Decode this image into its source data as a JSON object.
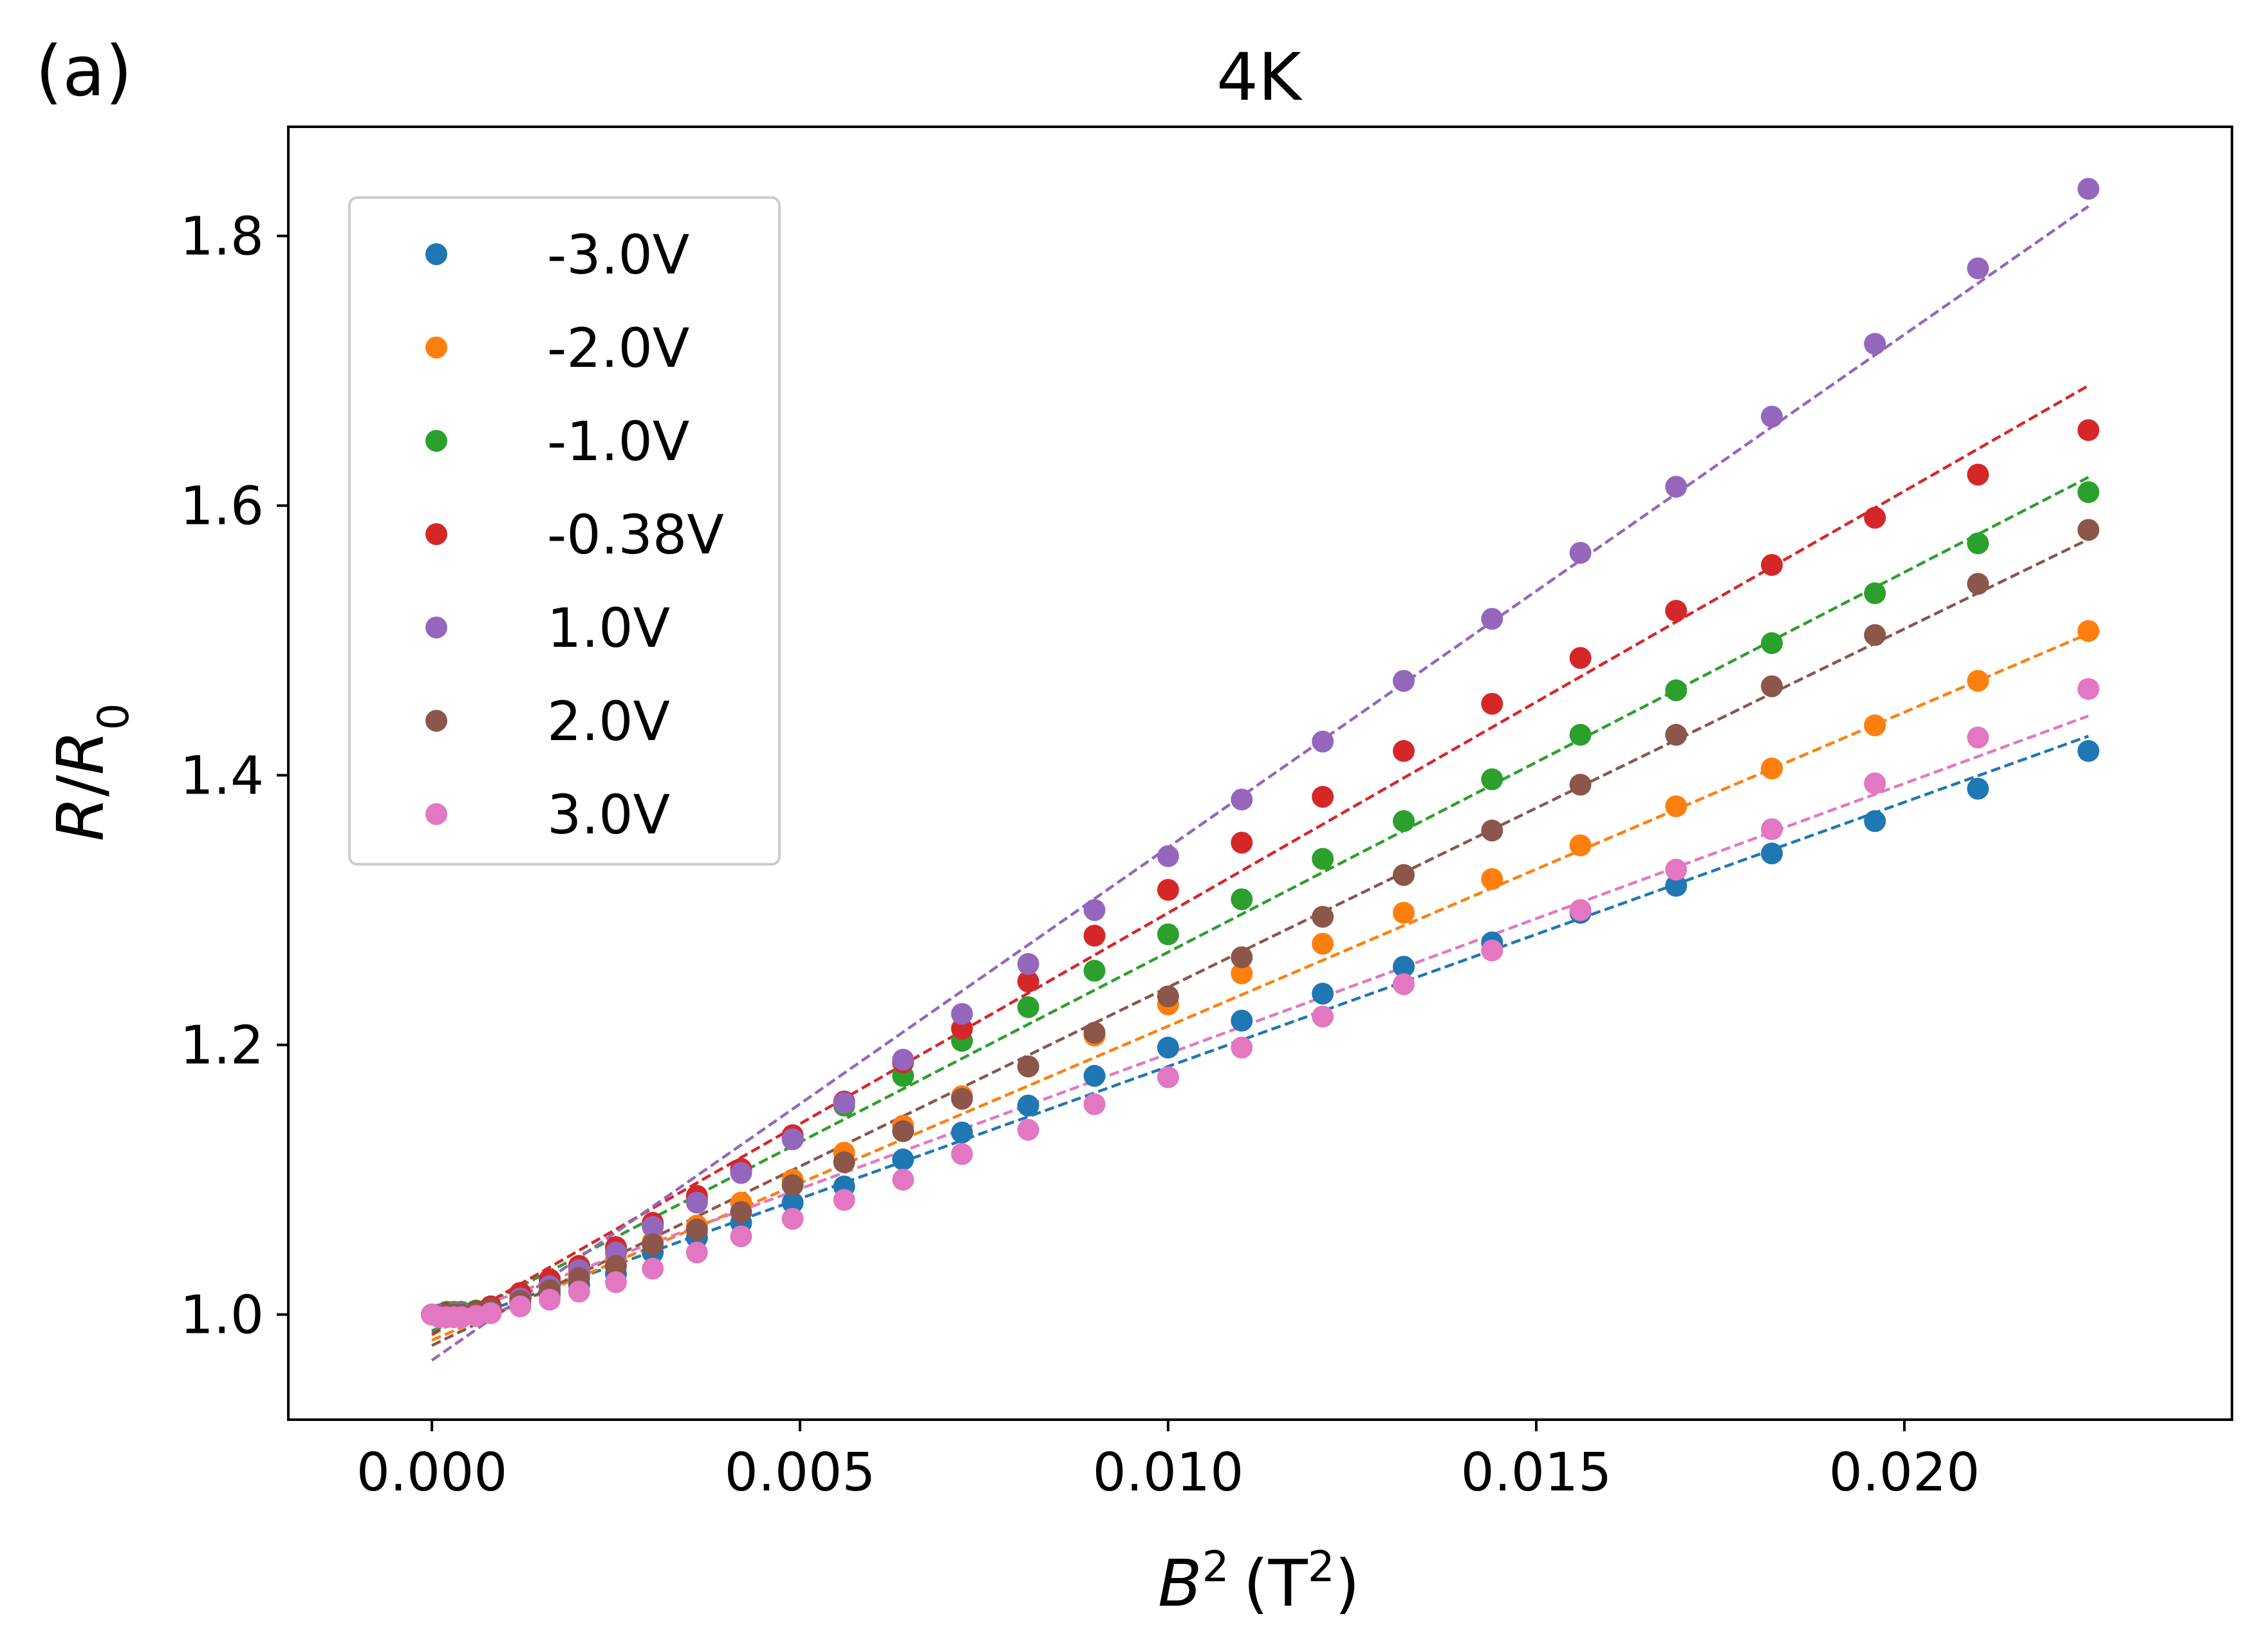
{
  "chart_data": {
    "type": "scatter",
    "panel_label": "(a)",
    "title": "4K",
    "xlabel": {
      "main": "B",
      "exp": "2",
      "unit": "T",
      "unit_exp": "2"
    },
    "ylabel": {
      "main": "R",
      "sub": "0"
    },
    "xlim": [
      -0.00195,
      0.02445
    ],
    "ylim": [
      0.922,
      1.881
    ],
    "x_ticks": [
      0.0,
      0.005,
      0.01,
      0.015,
      0.02
    ],
    "x_tick_labels": [
      "0.000",
      "0.005",
      "0.010",
      "0.015",
      "0.020"
    ],
    "y_ticks": [
      1.0,
      1.2,
      1.4,
      1.6,
      1.8
    ],
    "y_tick_labels": [
      "1.0",
      "1.2",
      "1.4",
      "1.6",
      "1.8"
    ],
    "grid": false,
    "legend_position": "upper-left",
    "x": [
      0.0,
      0.0001,
      0.0002,
      0.0003,
      0.0004,
      0.0006,
      0.0008,
      0.0012,
      0.0016,
      0.002,
      0.0025,
      0.003,
      0.0036,
      0.0042,
      0.0049,
      0.0056,
      0.0064,
      0.0072,
      0.0081,
      0.009,
      0.01,
      0.011,
      0.0121,
      0.0132,
      0.0144,
      0.0156,
      0.0169,
      0.0182,
      0.0196,
      0.021,
      0.0225
    ],
    "series": [
      {
        "name": "-3.0V",
        "color": "#1f77b4",
        "values": [
          1.0,
          1.0,
          1.001,
          1.0,
          1.0,
          1.001,
          1.004,
          1.009,
          1.015,
          1.022,
          1.03,
          1.046,
          1.057,
          1.068,
          1.083,
          1.095,
          1.115,
          1.135,
          1.155,
          1.177,
          1.198,
          1.218,
          1.238,
          1.258,
          1.276,
          1.298,
          1.318,
          1.342,
          1.366,
          1.39,
          1.418
        ],
        "fit": [
          0.988,
          1.429
        ]
      },
      {
        "name": "-2.0V",
        "color": "#ff7f0e",
        "values": [
          1.0,
          1.0,
          1.001,
          1.001,
          1.001,
          1.002,
          1.006,
          1.013,
          1.021,
          1.03,
          1.041,
          1.054,
          1.066,
          1.083,
          1.1,
          1.12,
          1.14,
          1.162,
          1.184,
          1.207,
          1.23,
          1.253,
          1.275,
          1.298,
          1.323,
          1.348,
          1.377,
          1.405,
          1.437,
          1.47,
          1.507
        ],
        "fit": [
          0.981,
          1.505
        ]
      },
      {
        "name": "-1.0V",
        "color": "#2ca02c",
        "values": [
          1.0,
          1.0,
          1.002,
          1.002,
          1.002,
          1.003,
          1.006,
          1.015,
          1.025,
          1.036,
          1.049,
          1.067,
          1.085,
          1.107,
          1.131,
          1.155,
          1.177,
          1.203,
          1.228,
          1.255,
          1.282,
          1.308,
          1.338,
          1.366,
          1.397,
          1.43,
          1.463,
          1.498,
          1.535,
          1.572,
          1.61
        ],
        "fit": [
          0.987,
          1.621
        ]
      },
      {
        "name": "-0.38V",
        "color": "#d62728",
        "values": [
          1.0,
          1.0,
          1.001,
          1.001,
          1.001,
          1.002,
          1.006,
          1.016,
          1.026,
          1.036,
          1.05,
          1.068,
          1.088,
          1.108,
          1.133,
          1.158,
          1.187,
          1.212,
          1.247,
          1.281,
          1.315,
          1.35,
          1.384,
          1.418,
          1.453,
          1.487,
          1.522,
          1.556,
          1.591,
          1.623,
          1.656
        ],
        "fit": [
          0.985,
          1.689
        ]
      },
      {
        "name": "1.0V",
        "color": "#9467bd",
        "values": [
          1.0,
          1.0,
          1.0,
          1.001,
          1.001,
          1.001,
          1.004,
          1.012,
          1.021,
          1.033,
          1.046,
          1.065,
          1.083,
          1.105,
          1.13,
          1.157,
          1.189,
          1.223,
          1.26,
          1.3,
          1.34,
          1.382,
          1.425,
          1.47,
          1.516,
          1.565,
          1.614,
          1.666,
          1.72,
          1.776,
          1.835
        ],
        "fit": [
          0.966,
          1.822
        ]
      },
      {
        "name": "2.0V",
        "color": "#8c564b",
        "values": [
          1.0,
          0.999,
          1.0,
          1.0,
          1.0,
          1.001,
          1.004,
          1.01,
          1.018,
          1.027,
          1.036,
          1.052,
          1.063,
          1.076,
          1.096,
          1.113,
          1.136,
          1.16,
          1.184,
          1.209,
          1.236,
          1.265,
          1.295,
          1.326,
          1.359,
          1.393,
          1.43,
          1.466,
          1.504,
          1.542,
          1.582
        ],
        "fit": [
          0.977,
          1.575
        ]
      },
      {
        "name": "3.0V",
        "color": "#e377c2",
        "values": [
          1.0,
          0.998,
          0.998,
          0.998,
          0.998,
          0.999,
          1.001,
          1.006,
          1.011,
          1.017,
          1.024,
          1.034,
          1.046,
          1.058,
          1.071,
          1.085,
          1.1,
          1.119,
          1.137,
          1.156,
          1.176,
          1.198,
          1.221,
          1.245,
          1.27,
          1.3,
          1.33,
          1.36,
          1.394,
          1.428,
          1.464
        ],
        "fit": [
          0.993,
          1.444
        ]
      }
    ]
  }
}
